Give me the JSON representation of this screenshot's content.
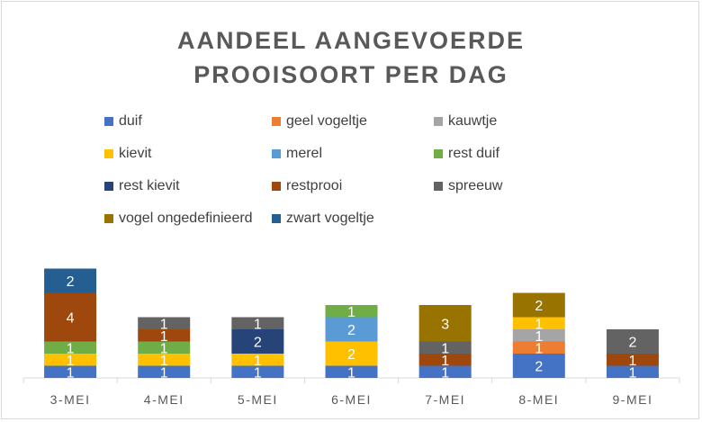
{
  "chart_data": {
    "type": "bar",
    "stacked": true,
    "title_line1": "AANDEEL AANGEVOERDE",
    "title_line2": "PROOISOORT PER DAG",
    "xlabel": "",
    "ylabel": "",
    "grid": false,
    "legend_position": "top",
    "categories": [
      "3-MEI",
      "4-MEI",
      "5-MEI",
      "6-MEI",
      "7-MEI",
      "8-MEI",
      "9-MEI"
    ],
    "series": [
      {
        "name": "duif",
        "color": "#4472C4",
        "values": [
          1,
          1,
          1,
          1,
          1,
          2,
          1
        ]
      },
      {
        "name": "geel vogeltje",
        "color": "#ED7D31",
        "values": [
          0,
          0,
          0,
          0,
          0,
          1,
          0
        ]
      },
      {
        "name": "kauwtje",
        "color": "#A5A5A5",
        "values": [
          0,
          0,
          0,
          0,
          0,
          1,
          0
        ]
      },
      {
        "name": "kievit",
        "color": "#FFC000",
        "values": [
          1,
          1,
          1,
          2,
          0,
          1,
          0
        ]
      },
      {
        "name": "merel",
        "color": "#5B9BD5",
        "values": [
          0,
          0,
          0,
          2,
          0,
          0,
          0
        ]
      },
      {
        "name": "rest duif",
        "color": "#70AD47",
        "values": [
          1,
          1,
          0,
          1,
          0,
          0,
          0
        ]
      },
      {
        "name": "rest kievit",
        "color": "#264478",
        "values": [
          0,
          0,
          2,
          0,
          0,
          0,
          0
        ]
      },
      {
        "name": "restprooi",
        "color": "#9E480E",
        "values": [
          4,
          1,
          0,
          0,
          1,
          0,
          1
        ]
      },
      {
        "name": "spreeuw",
        "color": "#636363",
        "values": [
          0,
          1,
          1,
          0,
          1,
          0,
          2
        ]
      },
      {
        "name": "vogel ongedefinieerd",
        "color": "#997300",
        "values": [
          0,
          0,
          0,
          0,
          3,
          2,
          0
        ]
      },
      {
        "name": "zwart vogeltje",
        "color": "#255E91",
        "values": [
          2,
          0,
          0,
          0,
          0,
          0,
          0
        ]
      }
    ],
    "ylim": [
      0,
      9
    ]
  }
}
